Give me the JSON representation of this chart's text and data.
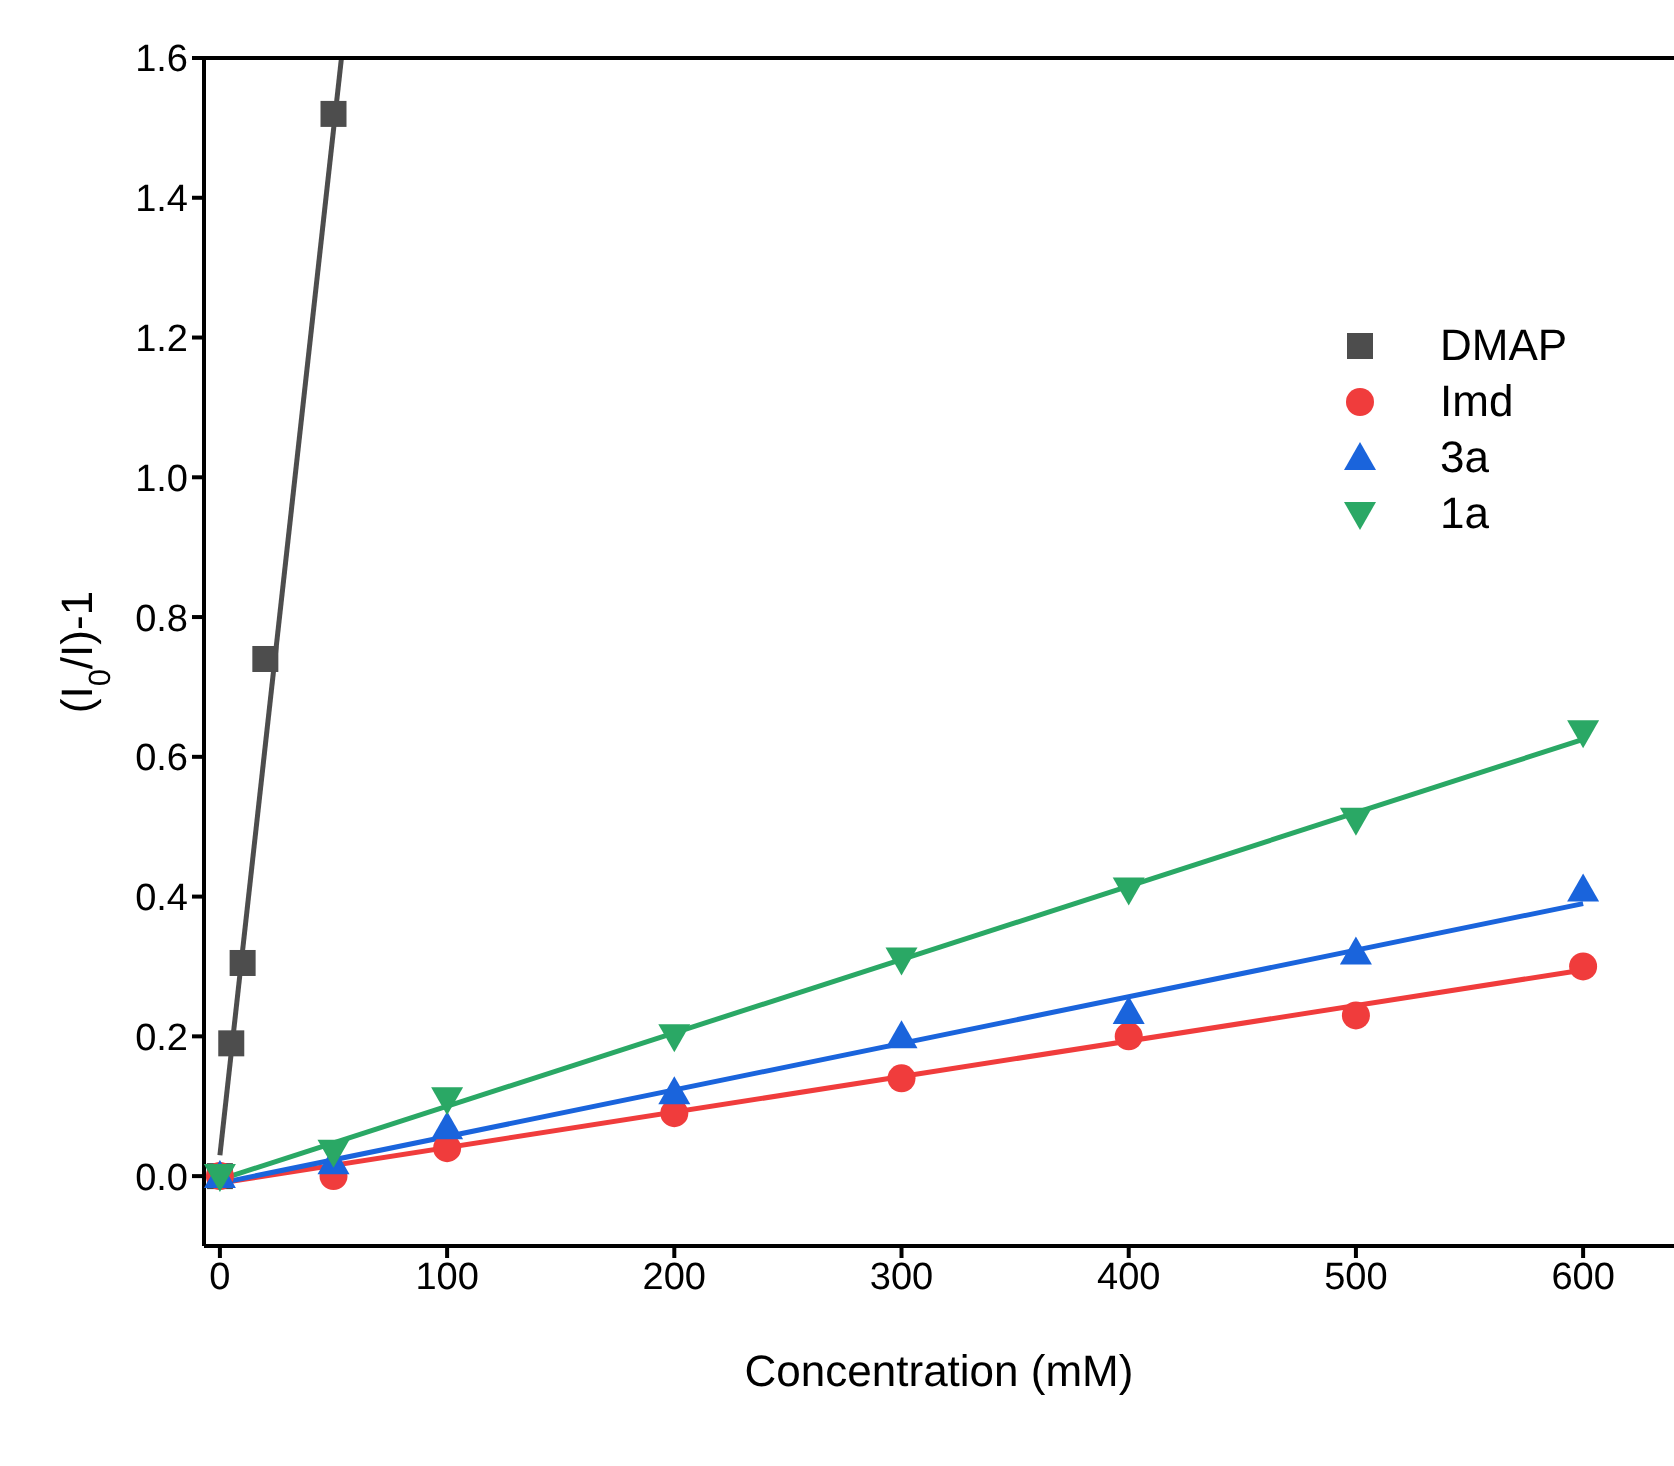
{
  "chart_data": {
    "type": "scatter",
    "xlabel": "Concentration (mM)",
    "ylabel": "(I$_{0}$/I)-1",
    "xlim": [
      -7,
      640
    ],
    "ylim": [
      -0.1,
      1.6
    ],
    "xticks": [
      0,
      100,
      200,
      300,
      400,
      500,
      600
    ],
    "yticks": [
      {
        "value": 0,
        "label": "0.0"
      },
      {
        "value": 0.2,
        "label": "0.2"
      },
      {
        "value": 0.4,
        "label": "0.4"
      },
      {
        "value": 0.6,
        "label": "0.6"
      },
      {
        "value": 0.8,
        "label": "0.8"
      },
      {
        "value": 1,
        "label": "1.0"
      },
      {
        "value": 1.2,
        "label": "1.2"
      },
      {
        "value": 1.4,
        "label": "1.4"
      },
      {
        "value": 1.6,
        "label": "1.6"
      }
    ],
    "grid": false,
    "legend": "right",
    "series": [
      {
        "name": "DMAP",
        "marker": "square",
        "color": "#4d4d4d",
        "x": [
          0,
          5,
          10,
          20,
          50
        ],
        "values": [
          0,
          0.19,
          0.305,
          0.74,
          1.52
        ]
      },
      {
        "name": "Imd",
        "marker": "circle",
        "color": "#f03c3c",
        "x": [
          0,
          50,
          100,
          200,
          300,
          400,
          500,
          600
        ],
        "values": [
          0,
          0,
          0.04,
          0.09,
          0.14,
          0.2,
          0.23,
          0.3
        ]
      },
      {
        "name": "3a",
        "marker": "triangle",
        "color": "#1a64dc",
        "x": [
          0,
          50,
          100,
          200,
          300,
          400,
          500,
          600
        ],
        "values": [
          0,
          0.02,
          0.07,
          0.12,
          0.2,
          0.235,
          0.32,
          0.41
        ]
      },
      {
        "name": "1a",
        "marker": "triangle-down",
        "color": "#2aa865",
        "x": [
          0,
          50,
          100,
          200,
          300,
          400,
          500,
          600
        ],
        "values": [
          0,
          0.035,
          0.11,
          0.2,
          0.31,
          0.41,
          0.51,
          0.635
        ]
      },
      {
        "type": "line",
        "color": "#4d4d4d",
        "x": [
          0,
          53.5
        ],
        "values": [
          0.03,
          1.6
        ]
      },
      {
        "type": "line",
        "color": "#f03c3c",
        "x": [
          0,
          600
        ],
        "values": [
          -0.01,
          0.295
        ]
      },
      {
        "type": "line",
        "color": "#1a64dc",
        "x": [
          0,
          600
        ],
        "values": [
          -0.01,
          0.39
        ]
      },
      {
        "type": "line",
        "color": "#2aa865",
        "x": [
          0,
          600
        ],
        "values": [
          -0.005,
          0.625
        ]
      }
    ]
  }
}
